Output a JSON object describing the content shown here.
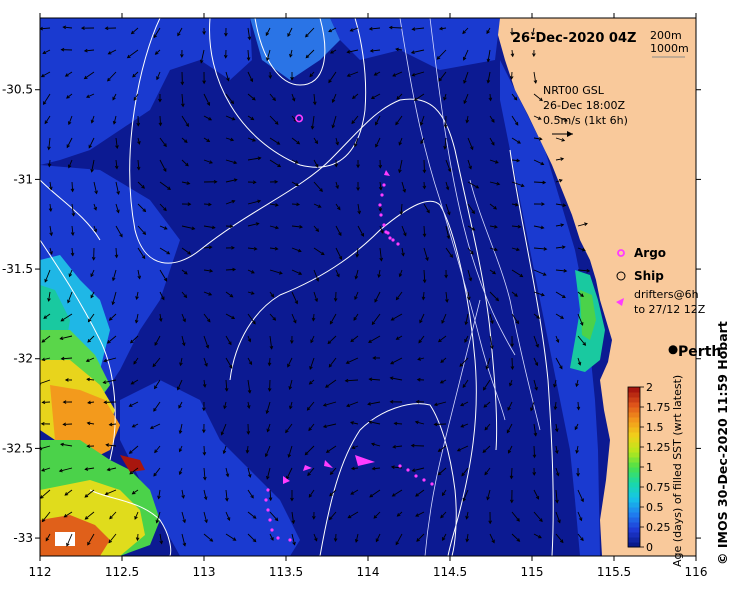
{
  "map": {
    "title": "26-Dec-2020 04Z",
    "depth_legend": [
      "200m",
      "1000m"
    ],
    "product": "NRT00 GSL",
    "product_time": "26-Dec 18:00Z",
    "velocity_scale": "0.5m/s (1kt 6h)",
    "x_axis": {
      "min": 112,
      "max": 116,
      "ticks": [
        "112",
        "112.5",
        "113",
        "113.5",
        "114",
        "114.5",
        "115",
        "115.5",
        "116"
      ]
    },
    "y_axis": {
      "min": -33.1,
      "max": -30.1,
      "ticks": [
        "-30.5",
        "-31",
        "-31.5",
        "-32",
        "-32.5",
        "-33"
      ]
    },
    "city": {
      "name": "Perth",
      "lon": 115.86,
      "lat": -31.95
    },
    "legend": {
      "argo": "Argo",
      "ship": "Ship",
      "drifters_line1": "drifters@6h",
      "drifters_line2": "to 27/12 12Z"
    },
    "colorbar": {
      "label": "Age (days) of filled SST (wrt latest)",
      "ticks": [
        "0",
        "0.25",
        "0.5",
        "0.75",
        "1",
        "1.25",
        "1.5",
        "1.75",
        "2"
      ],
      "colors": [
        "#0a1a8c",
        "#1f3bd6",
        "#1f7ff0",
        "#16c4e8",
        "#19d9a6",
        "#4be04a",
        "#b7e81c",
        "#f0d21a",
        "#f39a1c",
        "#e0561a",
        "#a8160e"
      ]
    },
    "credit": "© IMOS 30-Dec-2020 11:59 Hobart",
    "colors": {
      "land": "#f9c99b",
      "deep_water": "#0c1a92",
      "mid_water": "#1a3ad0",
      "light_water": "#2a74e6",
      "contour": "#ffffff",
      "argo": "#ff3cff"
    },
    "argo_float": {
      "lon": 113.58,
      "lat": -30.66
    }
  }
}
